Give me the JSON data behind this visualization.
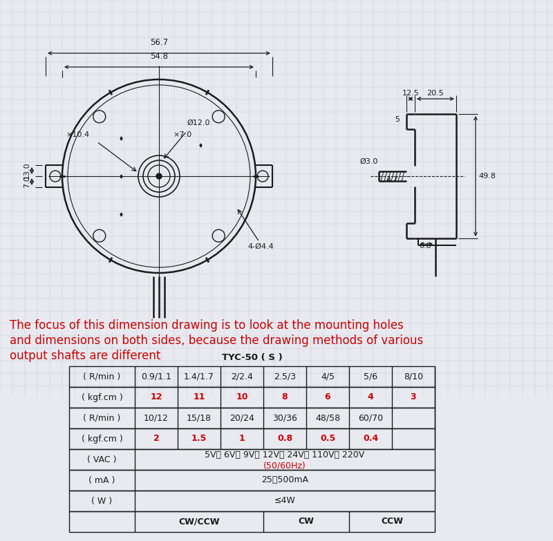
{
  "bg_color": "#e8eaf0",
  "line_color": "#1a1a1a",
  "red_color": "#cc0000",
  "grid_color": "#c8ccd8",
  "note_text_line1": "The focus of this dimension drawing is to look at the mounting holes",
  "note_text_line2": "and dimensions on both sides, because the drawing methods of various",
  "note_text_line3": "output shafts are different",
  "table_title": "TYC-50 ( S )",
  "rows": [
    {
      "label": "( R/min )",
      "values": [
        "0.9/1.1",
        "1.4/1.7",
        "2/2.4",
        "2.5/3",
        "4/5",
        "5/6",
        "8/10"
      ],
      "red": false,
      "merged": false
    },
    {
      "label": "( kgf.cm )",
      "values": [
        "12",
        "11",
        "10",
        "8",
        "6",
        "4",
        "3"
      ],
      "red": true,
      "merged": false
    },
    {
      "label": "( R/min )",
      "values": [
        "10/12",
        "15/18",
        "20/24",
        "30/36",
        "48/58",
        "60/70",
        ""
      ],
      "red": false,
      "merged": false
    },
    {
      "label": "( kgf.cm )",
      "values": [
        "2",
        "1.5",
        "1",
        "0.8",
        "0.5",
        "0.4",
        ""
      ],
      "red": true,
      "merged": false
    },
    {
      "label": "( VAC )",
      "line1": "5V、 6V、 9V、 12V、 24V、 110V、 220V",
      "line2": "(50/60Hz)",
      "merged": true
    },
    {
      "label": "( mA )",
      "content": "25～500mA",
      "merged": true,
      "red": false
    },
    {
      "label": "( W )",
      "content": "≤4W",
      "merged": true,
      "red": false
    },
    {
      "label": "",
      "cw_ccw": "CW/CCW",
      "cw": "CW",
      "ccw": "CCW",
      "last_row": true
    }
  ]
}
